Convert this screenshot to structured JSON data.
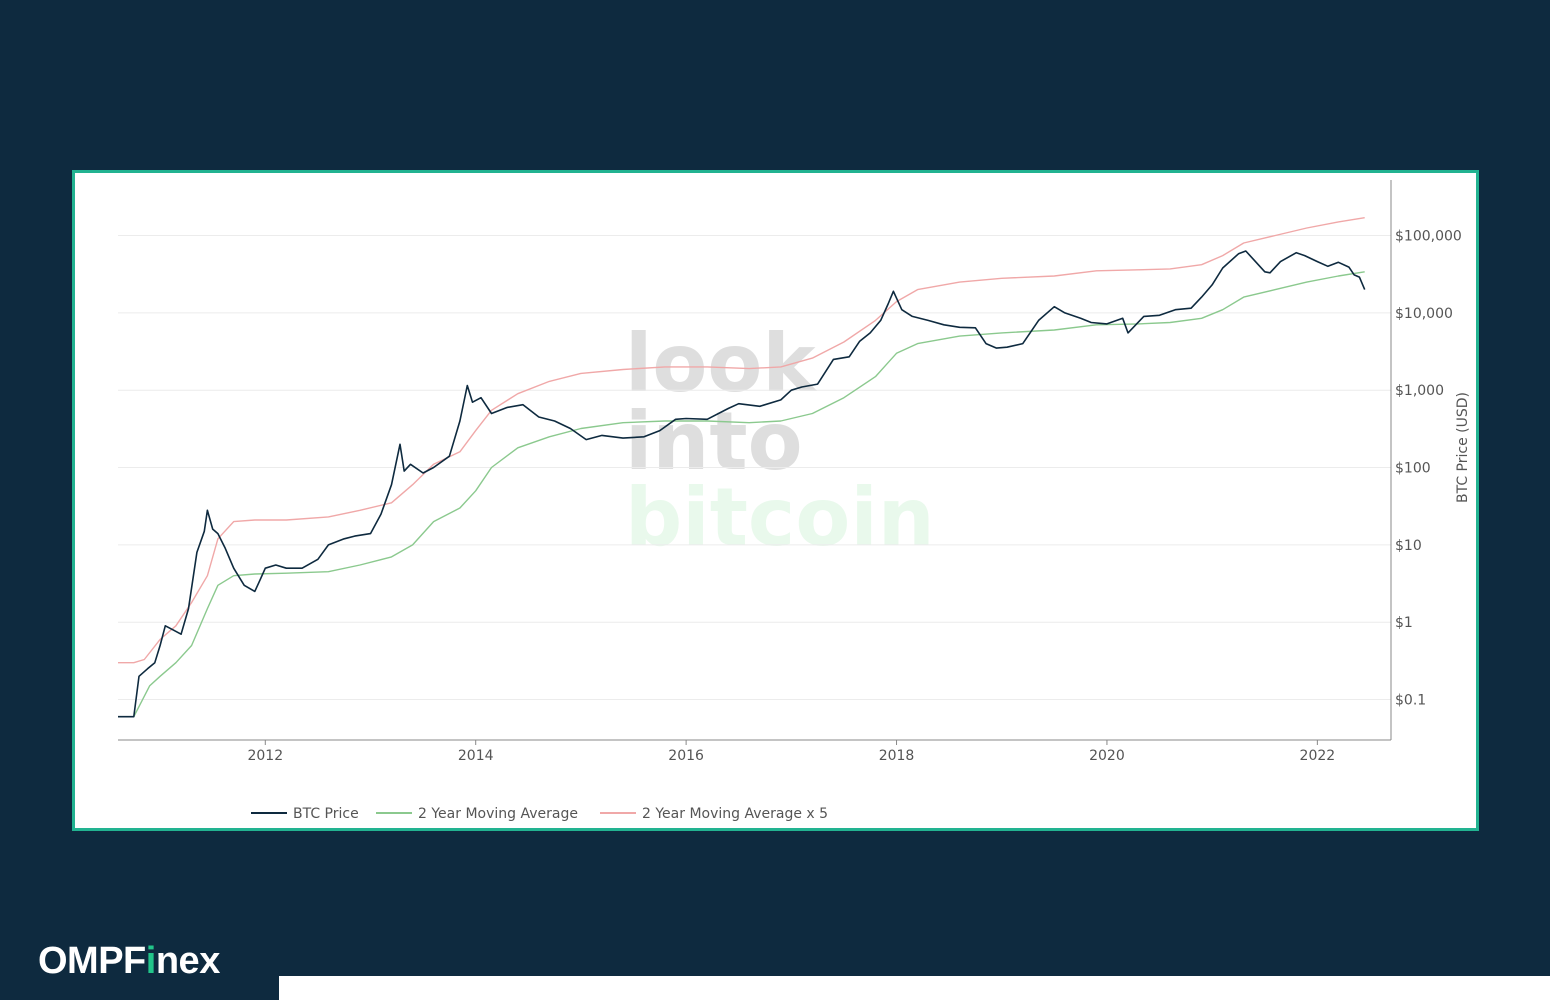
{
  "brand": {
    "prefix": "OMPF",
    "accent": "i",
    "suffix": "nex"
  },
  "colors": {
    "background": "#0e2a3f",
    "frame_border": "#22b391",
    "btc": "#0e2a3f",
    "ma": "#8bc98e",
    "ma5": "#f0a8a8",
    "watermark_gray": "#d4d4d4",
    "watermark_green": "#e2f7e6"
  },
  "chart_data": {
    "type": "line",
    "title": "",
    "xlabel": "",
    "ylabel": "BTC Price (USD)",
    "y_scale": "log",
    "ylim": [
      0.03,
      450000
    ],
    "xlim": [
      2010.6,
      2022.7
    ],
    "x_ticks": [
      2012,
      2014,
      2016,
      2018,
      2020,
      2022
    ],
    "x_tick_labels": [
      "2012",
      "2014",
      "2016",
      "2018",
      "2020",
      "2022"
    ],
    "y_ticks": [
      0.1,
      1,
      10,
      100,
      1000,
      10000,
      100000
    ],
    "y_tick_labels": [
      "$0.1",
      "$1",
      "$10",
      "$100",
      "$1,000",
      "$10,000",
      "$100,000"
    ],
    "legend_position": "bottom",
    "grid": true,
    "watermark": [
      "look",
      "into",
      "bitcoin"
    ],
    "series": [
      {
        "name": "BTC Price",
        "key": "btc",
        "x": [
          2010.6,
          2010.68,
          2010.75,
          2010.8,
          2010.88,
          2010.95,
          2011.0,
          2011.05,
          2011.12,
          2011.2,
          2011.27,
          2011.35,
          2011.42,
          2011.45,
          2011.5,
          2011.55,
          2011.62,
          2011.7,
          2011.8,
          2011.9,
          2011.95,
          2012.0,
          2012.1,
          2012.2,
          2012.35,
          2012.5,
          2012.6,
          2012.75,
          2012.85,
          2013.0,
          2013.1,
          2013.2,
          2013.28,
          2013.32,
          2013.38,
          2013.5,
          2013.6,
          2013.75,
          2013.85,
          2013.92,
          2013.97,
          2014.05,
          2014.15,
          2014.3,
          2014.45,
          2014.6,
          2014.75,
          2014.9,
          2015.05,
          2015.2,
          2015.4,
          2015.6,
          2015.75,
          2015.9,
          2016.0,
          2016.2,
          2016.4,
          2016.5,
          2016.7,
          2016.9,
          2017.0,
          2017.1,
          2017.25,
          2017.4,
          2017.55,
          2017.65,
          2017.75,
          2017.85,
          2017.92,
          2017.97,
          2018.05,
          2018.15,
          2018.3,
          2018.45,
          2018.6,
          2018.75,
          2018.85,
          2018.95,
          2019.05,
          2019.2,
          2019.35,
          2019.5,
          2019.6,
          2019.75,
          2019.85,
          2020.0,
          2020.15,
          2020.2,
          2020.35,
          2020.5,
          2020.65,
          2020.8,
          2020.9,
          2021.0,
          2021.1,
          2021.25,
          2021.32,
          2021.4,
          2021.5,
          2021.55,
          2021.65,
          2021.8,
          2021.88,
          2022.0,
          2022.1,
          2022.2,
          2022.3,
          2022.35,
          2022.4,
          2022.45
        ],
        "values": [
          0.06,
          0.06,
          0.06,
          0.2,
          0.25,
          0.3,
          0.5,
          0.9,
          0.8,
          0.7,
          1.5,
          8,
          15,
          28,
          16,
          14,
          9,
          5,
          3,
          2.5,
          3.5,
          5,
          5.5,
          5,
          5,
          6.5,
          10,
          12,
          13,
          14,
          25,
          60,
          200,
          90,
          110,
          85,
          100,
          140,
          400,
          1150,
          700,
          800,
          500,
          600,
          650,
          450,
          400,
          320,
          230,
          260,
          240,
          250,
          300,
          420,
          430,
          420,
          580,
          670,
          620,
          750,
          1000,
          1100,
          1200,
          2500,
          2700,
          4300,
          5500,
          8000,
          13000,
          19000,
          11000,
          9000,
          8000,
          7000,
          6500,
          6400,
          4000,
          3500,
          3600,
          4000,
          8000,
          12000,
          10000,
          8500,
          7500,
          7200,
          8500,
          5500,
          9000,
          9300,
          11000,
          11500,
          16000,
          23000,
          38000,
          58000,
          63000,
          48000,
          34000,
          33000,
          46000,
          60000,
          55000,
          46000,
          40000,
          45000,
          39000,
          31000,
          29000,
          20000
        ]
      },
      {
        "name": "2 Year Moving Average",
        "key": "ma",
        "x": [
          2010.6,
          2010.75,
          2010.9,
          2011.0,
          2011.15,
          2011.3,
          2011.45,
          2011.55,
          2011.7,
          2011.9,
          2012.2,
          2012.6,
          2012.9,
          2013.2,
          2013.4,
          2013.6,
          2013.85,
          2014.0,
          2014.15,
          2014.4,
          2014.7,
          2015.0,
          2015.4,
          2015.8,
          2016.2,
          2016.6,
          2016.9,
          2017.2,
          2017.5,
          2017.8,
          2018.0,
          2018.2,
          2018.6,
          2019.0,
          2019.5,
          2019.9,
          2020.3,
          2020.6,
          2020.9,
          2021.1,
          2021.3,
          2021.6,
          2021.9,
          2022.2,
          2022.45
        ],
        "values": [
          0.06,
          0.06,
          0.15,
          0.2,
          0.3,
          0.5,
          1.5,
          3,
          4,
          4.2,
          4.3,
          4.5,
          5.5,
          7,
          10,
          20,
          30,
          50,
          100,
          180,
          250,
          320,
          380,
          400,
          400,
          380,
          400,
          500,
          800,
          1500,
          3000,
          4000,
          5000,
          5500,
          6000,
          7000,
          7200,
          7500,
          8500,
          11000,
          16000,
          20000,
          25000,
          30000,
          34000
        ]
      },
      {
        "name": "2 Year Moving Average x 5",
        "key": "ma5",
        "x": [
          2010.6,
          2010.75,
          2010.85,
          2011.0,
          2011.15,
          2011.3,
          2011.45,
          2011.55,
          2011.7,
          2011.9,
          2012.2,
          2012.6,
          2012.9,
          2013.2,
          2013.4,
          2013.6,
          2013.85,
          2014.0,
          2014.15,
          2014.4,
          2014.7,
          2015.0,
          2015.4,
          2015.8,
          2016.2,
          2016.6,
          2016.9,
          2017.2,
          2017.5,
          2017.8,
          2018.0,
          2018.2,
          2018.6,
          2019.0,
          2019.5,
          2019.9,
          2020.3,
          2020.6,
          2020.9,
          2021.1,
          2021.3,
          2021.6,
          2021.9,
          2022.2,
          2022.45
        ],
        "values": [
          0.3,
          0.3,
          0.33,
          0.6,
          0.9,
          1.8,
          4,
          12,
          20,
          21,
          21,
          23,
          28,
          35,
          60,
          110,
          160,
          300,
          550,
          900,
          1300,
          1650,
          1850,
          2000,
          2000,
          1900,
          2000,
          2600,
          4200,
          8000,
          14000,
          20000,
          25000,
          28000,
          30000,
          35000,
          36000,
          37000,
          42000,
          55000,
          80000,
          100000,
          125000,
          150000,
          170000
        ]
      }
    ]
  }
}
